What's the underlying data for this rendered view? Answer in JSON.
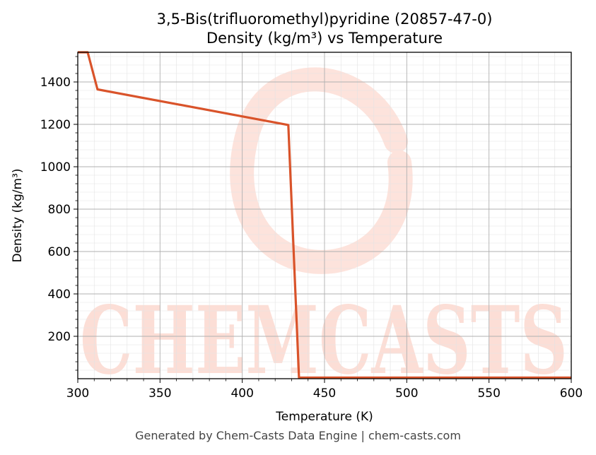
{
  "footer_text": "Generated by Chem-Casts Data Engine | chem-casts.com",
  "watermark": {
    "text": "CHEMCASTS",
    "color": "#fcd9d0"
  },
  "colors": {
    "line": "#d9532a",
    "major_grid": "#b0b0b0",
    "minor_grid": "#e3e3e3",
    "axis": "#000000"
  },
  "chart_data": {
    "type": "line",
    "title": [
      "3,5-Bis(trifluoromethyl)pyridine (20857-47-0)",
      "Density (kg/m³) vs Temperature"
    ],
    "xlabel": "Temperature (K)",
    "ylabel": "Density (kg/m³)",
    "xlim": [
      300,
      600
    ],
    "ylim": [
      0,
      1540
    ],
    "x_ticks": [
      300,
      350,
      400,
      450,
      500,
      550,
      600
    ],
    "y_ticks": [
      200,
      400,
      600,
      800,
      1000,
      1200,
      1400
    ],
    "grid": true,
    "series": [
      {
        "x": [
          300,
          306,
          312,
          428,
          434.5,
          600
        ],
        "y": [
          1540,
          1540,
          1365,
          1197,
          5,
          5
        ]
      }
    ]
  }
}
